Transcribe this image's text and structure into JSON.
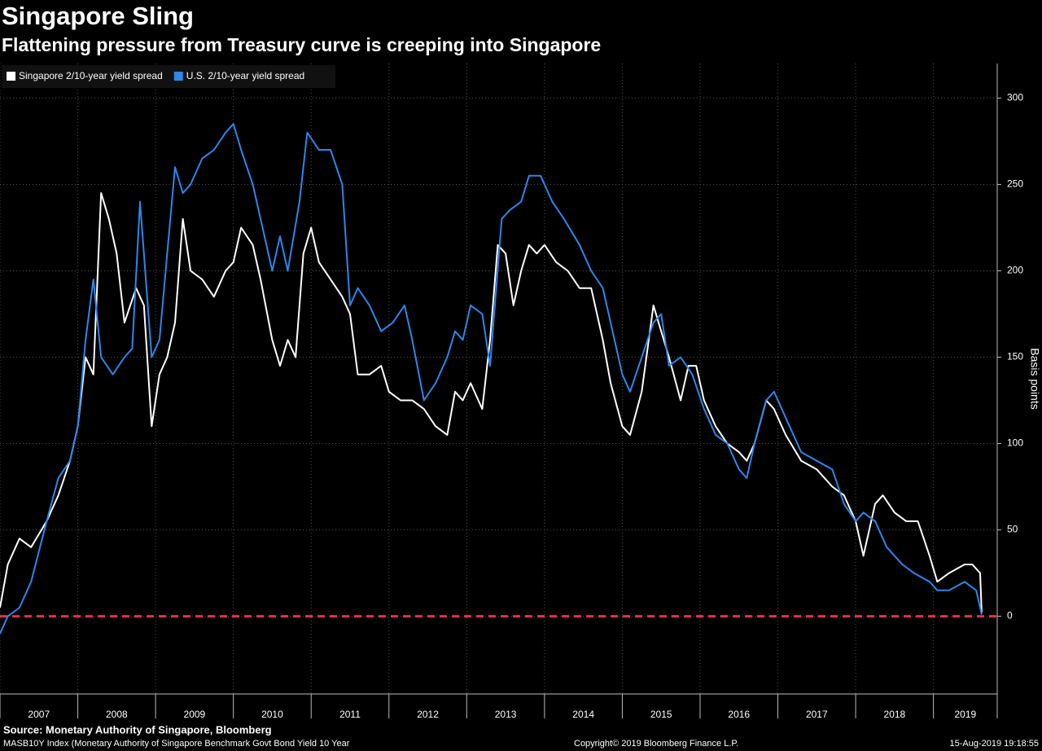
{
  "chart_data": {
    "type": "line",
    "title": "Singapore Sling",
    "subtitle": "Flattening pressure from Treasury curve is creeping into Singapore",
    "y_label": "Basis points",
    "xlim": [
      2007,
      2019.82
    ],
    "ylim": [
      -45,
      320
    ],
    "xticks": [
      {
        "value": 2007,
        "label": "2007"
      },
      {
        "value": 2008,
        "label": "2008"
      },
      {
        "value": 2009,
        "label": "2009"
      },
      {
        "value": 2010,
        "label": "2010"
      },
      {
        "value": 2011,
        "label": "2011"
      },
      {
        "value": 2012,
        "label": "2012"
      },
      {
        "value": 2013,
        "label": "2013"
      },
      {
        "value": 2014,
        "label": "2014"
      },
      {
        "value": 2015,
        "label": "2015"
      },
      {
        "value": 2016,
        "label": "2016"
      },
      {
        "value": 2017,
        "label": "2017"
      },
      {
        "value": 2018,
        "label": "2018"
      },
      {
        "value": 2019,
        "label": "2019"
      }
    ],
    "yticks": [
      0,
      50,
      100,
      150,
      200,
      250,
      300
    ],
    "grid": true,
    "legend": "top-left",
    "reference_line": {
      "value": 0,
      "color": "#e8304a"
    },
    "series": [
      {
        "name": "Singapore 2/10-year yield spread",
        "color": "#ffffff",
        "x": [
          2007.0,
          2007.1,
          2007.25,
          2007.4,
          2007.6,
          2007.75,
          2007.9,
          2008.0,
          2008.1,
          2008.2,
          2008.3,
          2008.4,
          2008.5,
          2008.6,
          2008.75,
          2008.85,
          2008.95,
          2009.05,
          2009.15,
          2009.25,
          2009.35,
          2009.45,
          2009.6,
          2009.75,
          2009.9,
          2010.0,
          2010.1,
          2010.25,
          2010.35,
          2010.5,
          2010.6,
          2010.7,
          2010.8,
          2010.9,
          2011.0,
          2011.1,
          2011.25,
          2011.4,
          2011.5,
          2011.6,
          2011.75,
          2011.9,
          2012.0,
          2012.15,
          2012.3,
          2012.45,
          2012.6,
          2012.75,
          2012.85,
          2012.95,
          2013.05,
          2013.2,
          2013.3,
          2013.4,
          2013.5,
          2013.6,
          2013.7,
          2013.8,
          2013.9,
          2014.0,
          2014.15,
          2014.3,
          2014.45,
          2014.6,
          2014.75,
          2014.85,
          2015.0,
          2015.1,
          2015.25,
          2015.4,
          2015.5,
          2015.6,
          2015.75,
          2015.85,
          2015.95,
          2016.05,
          2016.2,
          2016.35,
          2016.5,
          2016.6,
          2016.7,
          2016.85,
          2016.95,
          2017.1,
          2017.3,
          2017.5,
          2017.7,
          2017.85,
          2018.0,
          2018.1,
          2018.25,
          2018.35,
          2018.5,
          2018.65,
          2018.8,
          2018.95,
          2019.05,
          2019.2,
          2019.4,
          2019.5,
          2019.6,
          2019.62
        ],
        "values": [
          5,
          30,
          45,
          40,
          55,
          70,
          90,
          110,
          150,
          140,
          245,
          230,
          210,
          170,
          190,
          180,
          110,
          140,
          150,
          170,
          230,
          200,
          195,
          185,
          200,
          205,
          225,
          215,
          195,
          160,
          145,
          160,
          150,
          210,
          225,
          205,
          195,
          185,
          175,
          140,
          140,
          145,
          130,
          125,
          125,
          120,
          110,
          105,
          130,
          125,
          135,
          120,
          160,
          215,
          210,
          180,
          200,
          215,
          210,
          215,
          205,
          200,
          190,
          190,
          160,
          135,
          110,
          105,
          130,
          180,
          165,
          150,
          125,
          145,
          145,
          125,
          110,
          100,
          95,
          90,
          100,
          125,
          120,
          105,
          90,
          85,
          75,
          70,
          55,
          35,
          65,
          70,
          60,
          55,
          55,
          35,
          20,
          25,
          30,
          30,
          25,
          2
        ]
      },
      {
        "name": "U.S. 2/10-year yield spread",
        "color": "#2f86e8",
        "x": [
          2007.0,
          2007.1,
          2007.25,
          2007.4,
          2007.6,
          2007.75,
          2007.9,
          2008.0,
          2008.1,
          2008.2,
          2008.3,
          2008.45,
          2008.6,
          2008.7,
          2008.8,
          2008.95,
          2009.05,
          2009.15,
          2009.25,
          2009.35,
          2009.45,
          2009.6,
          2009.75,
          2009.9,
          2010.0,
          2010.1,
          2010.25,
          2010.35,
          2010.5,
          2010.6,
          2010.7,
          2010.85,
          2010.95,
          2011.1,
          2011.25,
          2011.4,
          2011.5,
          2011.6,
          2011.75,
          2011.9,
          2012.05,
          2012.2,
          2012.3,
          2012.45,
          2012.6,
          2012.75,
          2012.85,
          2012.95,
          2013.05,
          2013.2,
          2013.3,
          2013.45,
          2013.55,
          2013.7,
          2013.8,
          2013.95,
          2014.1,
          2014.25,
          2014.45,
          2014.6,
          2014.75,
          2014.85,
          2015.0,
          2015.1,
          2015.25,
          2015.4,
          2015.5,
          2015.6,
          2015.75,
          2015.9,
          2016.05,
          2016.2,
          2016.35,
          2016.5,
          2016.6,
          2016.7,
          2016.85,
          2016.95,
          2017.1,
          2017.3,
          2017.5,
          2017.7,
          2017.85,
          2018.0,
          2018.1,
          2018.25,
          2018.4,
          2018.6,
          2018.75,
          2018.95,
          2019.05,
          2019.2,
          2019.4,
          2019.55,
          2019.62
        ],
        "values": [
          -10,
          0,
          5,
          20,
          55,
          80,
          90,
          110,
          160,
          195,
          150,
          140,
          150,
          155,
          240,
          150,
          160,
          210,
          260,
          245,
          250,
          265,
          270,
          280,
          285,
          270,
          250,
          230,
          200,
          220,
          200,
          240,
          280,
          270,
          270,
          250,
          180,
          190,
          180,
          165,
          170,
          180,
          160,
          125,
          135,
          150,
          165,
          160,
          180,
          175,
          145,
          230,
          235,
          240,
          255,
          255,
          240,
          230,
          215,
          200,
          190,
          170,
          140,
          130,
          150,
          170,
          175,
          145,
          150,
          140,
          120,
          105,
          100,
          85,
          80,
          100,
          125,
          130,
          115,
          95,
          90,
          85,
          65,
          55,
          60,
          55,
          40,
          30,
          25,
          20,
          15,
          15,
          20,
          15,
          1
        ]
      }
    ],
    "source": "Source: Monetary Authority of Singapore, Bloomberg",
    "footnote": "MASB10Y Index (Monetary Authority of Singapore Benchmark Govt Bond Yield 10 Year",
    "copyright": "Copyright© 2019 Bloomberg Finance L.P.",
    "timestamp": "15-Aug-2019 19:18:55"
  }
}
